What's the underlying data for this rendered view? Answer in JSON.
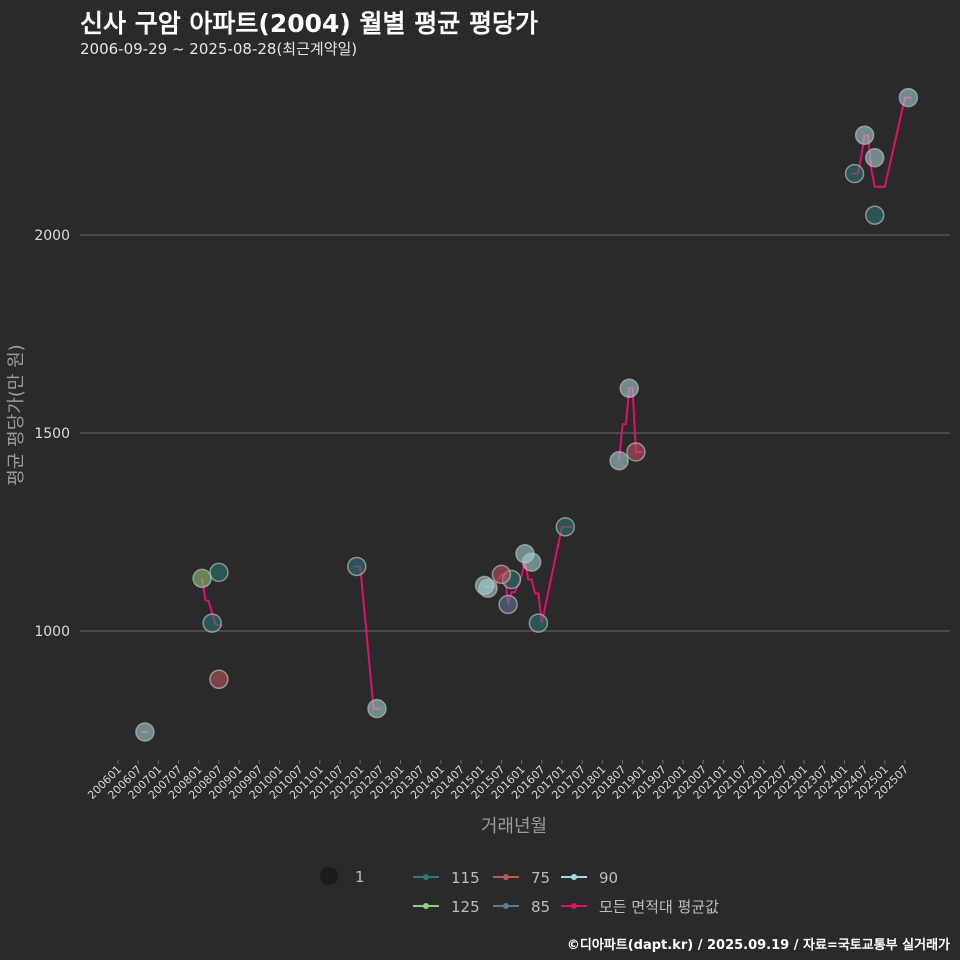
{
  "title": "신사 구암 아파트(2004) 월별 평균 평당가",
  "subtitle": "2006-09-29 ~ 2025-08-28(최근계약일)",
  "caption": "©디아파트(dapt.kr) / 2025.09.19 / 자료=국토교통부 실거래가",
  "chart_data": {
    "type": "scatter",
    "xlabel": "거래년월",
    "ylabel": "평균 평당가(만 원)",
    "ylim": [
      760,
      2400
    ],
    "yticks": [
      1000,
      1500,
      2000
    ],
    "grid": "horizontal",
    "legend_position": "bottom",
    "x_tick_labels": [
      "200601",
      "200607",
      "200701",
      "200707",
      "200801",
      "200807",
      "200901",
      "200907",
      "201001",
      "201007",
      "201101",
      "201107",
      "201201",
      "201207",
      "201301",
      "201307",
      "201401",
      "201407",
      "201501",
      "201507",
      "201601",
      "201607",
      "201701",
      "201707",
      "201801",
      "201807",
      "201901",
      "201907",
      "202001",
      "202007",
      "202101",
      "202107",
      "202201",
      "202207",
      "202301",
      "202307",
      "202401",
      "202407",
      "202501",
      "202507"
    ],
    "size_legend": {
      "label": "1"
    },
    "colors": {
      "115": "#2a7a78",
      "125": "#8fd17a",
      "75": "#c2565c",
      "85": "#5b7b97",
      "90": "#a8dadc",
      "avg": "#e0116a"
    },
    "series": [
      {
        "name": "115",
        "color_key": "115",
        "points": [
          {
            "x": "2008-07",
            "y": 1148
          },
          {
            "x": "2008-05",
            "y": 1020
          },
          {
            "x": "2011-12",
            "y": 1163
          },
          {
            "x": "2015-10",
            "y": 1130
          },
          {
            "x": "2016-06",
            "y": 1020
          },
          {
            "x": "2017-02",
            "y": 1263
          },
          {
            "x": "2024-04",
            "y": 2155
          },
          {
            "x": "2024-10",
            "y": 2050
          }
        ]
      },
      {
        "name": "125",
        "color_key": "125",
        "points": [
          {
            "x": "2008-02",
            "y": 1133
          }
        ]
      },
      {
        "name": "75",
        "color_key": "75",
        "points": [
          {
            "x": "2008-07",
            "y": 878
          },
          {
            "x": "2015-07",
            "y": 1143
          },
          {
            "x": "2018-11",
            "y": 1452
          }
        ]
      },
      {
        "name": "85",
        "color_key": "85",
        "points": [
          {
            "x": "2015-09",
            "y": 1067
          }
        ]
      },
      {
        "name": "90",
        "color_key": "90",
        "points": [
          {
            "x": "2006-09",
            "y": 745
          },
          {
            "x": "2012-06",
            "y": 804
          },
          {
            "x": "2015-02",
            "y": 1115
          },
          {
            "x": "2015-03",
            "y": 1108
          },
          {
            "x": "2016-02",
            "y": 1195
          },
          {
            "x": "2016-04",
            "y": 1174
          },
          {
            "x": "2018-06",
            "y": 1430
          },
          {
            "x": "2018-09",
            "y": 1613
          },
          {
            "x": "2024-07",
            "y": 2252
          },
          {
            "x": "2024-10",
            "y": 2195
          },
          {
            "x": "2025-08",
            "y": 2347
          }
        ]
      },
      {
        "name": "모든 면적대 평균값",
        "color_key": "avg",
        "line": [
          {
            "x": "2006-08",
            "y": 745
          },
          {
            "x": "2006-10",
            "y": 745
          },
          {
            "x": "2008-02",
            "y": 1133
          },
          {
            "x": "2008-03",
            "y": 1078
          },
          {
            "x": "2008-04",
            "y": 1075
          },
          {
            "x": "2008-05",
            "y": 1045
          },
          {
            "x": "2008-06",
            "y": 1017
          },
          {
            "x": "2008-08",
            "y": 1013
          },
          {
            "x": "2011-11",
            "y": 1163
          },
          {
            "x": "2012-01",
            "y": 1163
          },
          {
            "x": "2012-05",
            "y": 804
          },
          {
            "x": "2012-07",
            "y": 804
          },
          {
            "x": "2015-02",
            "y": 1112
          },
          {
            "x": "2015-05",
            "y": 1112
          },
          {
            "x": "2015-06",
            "y": 1128
          },
          {
            "x": "2015-07",
            "y": 1143
          },
          {
            "x": "2015-08",
            "y": 1143
          },
          {
            "x": "2015-09",
            "y": 1067
          },
          {
            "x": "2015-10",
            "y": 1098
          },
          {
            "x": "2015-11",
            "y": 1098
          },
          {
            "x": "2016-01",
            "y": 1140
          },
          {
            "x": "2016-02",
            "y": 1175
          },
          {
            "x": "2016-03",
            "y": 1130
          },
          {
            "x": "2016-04",
            "y": 1130
          },
          {
            "x": "2016-05",
            "y": 1095
          },
          {
            "x": "2016-06",
            "y": 1095
          },
          {
            "x": "2016-07",
            "y": 1020
          },
          {
            "x": "2017-01",
            "y": 1263
          },
          {
            "x": "2017-04",
            "y": 1263
          },
          {
            "x": "2018-06",
            "y": 1430
          },
          {
            "x": "2018-07",
            "y": 1522
          },
          {
            "x": "2018-08",
            "y": 1522
          },
          {
            "x": "2018-09",
            "y": 1613
          },
          {
            "x": "2018-10",
            "y": 1613
          },
          {
            "x": "2018-11",
            "y": 1452
          },
          {
            "x": "2019-01",
            "y": 1452
          },
          {
            "x": "2024-03",
            "y": 2155
          },
          {
            "x": "2024-05",
            "y": 2155
          },
          {
            "x": "2024-06",
            "y": 2198
          },
          {
            "x": "2024-07",
            "y": 2252
          },
          {
            "x": "2024-08",
            "y": 2252
          },
          {
            "x": "2024-09",
            "y": 2165
          },
          {
            "x": "2024-10",
            "y": 2122
          },
          {
            "x": "2025-01",
            "y": 2122
          },
          {
            "x": "2025-07",
            "y": 2347
          },
          {
            "x": "2025-09",
            "y": 2347
          }
        ]
      }
    ],
    "legend": [
      {
        "key": "115",
        "label": "115"
      },
      {
        "key": "75",
        "label": "75"
      },
      {
        "key": "90",
        "label": "90"
      },
      {
        "key": "125",
        "label": "125"
      },
      {
        "key": "85",
        "label": "85"
      },
      {
        "key": "avg",
        "label": "모든 면적대 평균값"
      }
    ]
  }
}
